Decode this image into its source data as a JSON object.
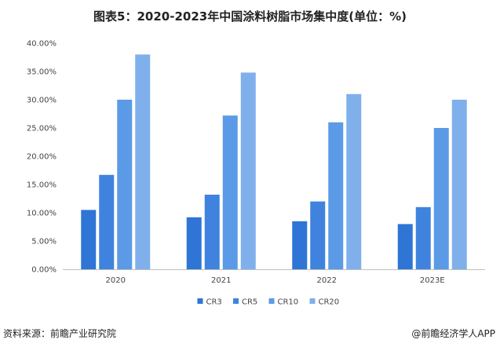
{
  "title": "图表5：2020-2023年中国涂料树脂市场集中度(单位：%)",
  "footer": {
    "source": "资料来源：前瞻产业研究院",
    "brand": "@前瞻经济学人APP"
  },
  "chart_data": {
    "type": "bar",
    "categories": [
      "2020",
      "2021",
      "2022",
      "2023E"
    ],
    "series": [
      {
        "name": "CR3",
        "values": [
          10.5,
          9.2,
          8.5,
          8.0
        ],
        "color": "#2e75d6"
      },
      {
        "name": "CR5",
        "values": [
          16.7,
          13.2,
          12.0,
          11.0
        ],
        "color": "#3f83de"
      },
      {
        "name": "CR10",
        "values": [
          30.0,
          27.2,
          26.0,
          25.0
        ],
        "color": "#5b9ae6"
      },
      {
        "name": "CR20",
        "values": [
          38.0,
          34.8,
          31.0,
          30.0
        ],
        "color": "#7fb0ec"
      }
    ],
    "ylim": [
      0,
      40
    ],
    "yticks": [
      "0.00%",
      "5.00%",
      "10.00%",
      "15.00%",
      "20.00%",
      "25.00%",
      "30.00%",
      "35.00%",
      "40.00%"
    ],
    "legend": "bottom",
    "grid": false
  }
}
